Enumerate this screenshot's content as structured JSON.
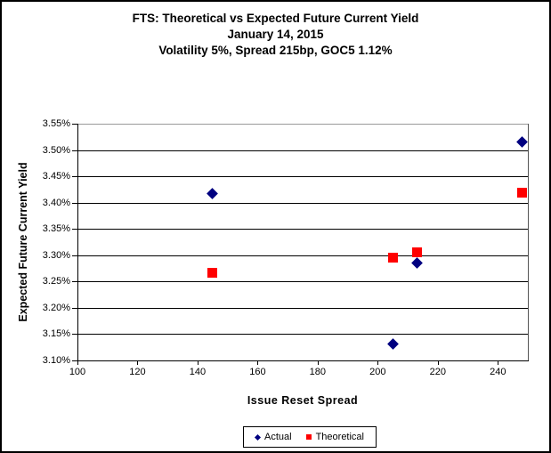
{
  "chart_data": {
    "type": "scatter",
    "title": "FTS: Theoretical vs Expected Future Current Yield",
    "subtitle_date": "January 14, 2015",
    "subtitle_params": "Volatility 5%, Spread 215bp, GOC5 1.12%",
    "xlabel": "Issue Reset Spread",
    "ylabel": "Expected Future Current Yield",
    "xlim": [
      100,
      250
    ],
    "ylim": [
      3.1,
      3.55
    ],
    "x_ticks": [
      100,
      120,
      140,
      160,
      180,
      200,
      220,
      240
    ],
    "x_tick_labels": [
      "100",
      "120",
      "140",
      "160",
      "180",
      "200",
      "220",
      "240"
    ],
    "y_ticks": [
      3.1,
      3.15,
      3.2,
      3.25,
      3.3,
      3.35,
      3.4,
      3.45,
      3.5,
      3.55
    ],
    "y_tick_labels": [
      "3.10%",
      "3.15%",
      "3.20%",
      "3.25%",
      "3.30%",
      "3.35%",
      "3.40%",
      "3.45%",
      "3.50%",
      "3.55%"
    ],
    "grid": "horizontal",
    "legend_position": "bottom",
    "series": [
      {
        "name": "Actual",
        "marker": "diamond",
        "color": "#000080",
        "points": [
          [
            145,
            3.417
          ],
          [
            205,
            3.131
          ],
          [
            213,
            3.285
          ],
          [
            248,
            3.515
          ]
        ]
      },
      {
        "name": "Theoretical",
        "marker": "square",
        "color": "#FF0000",
        "points": [
          [
            145,
            3.266
          ],
          [
            205,
            3.296
          ],
          [
            213,
            3.306
          ],
          [
            248,
            3.419
          ]
        ]
      }
    ]
  }
}
